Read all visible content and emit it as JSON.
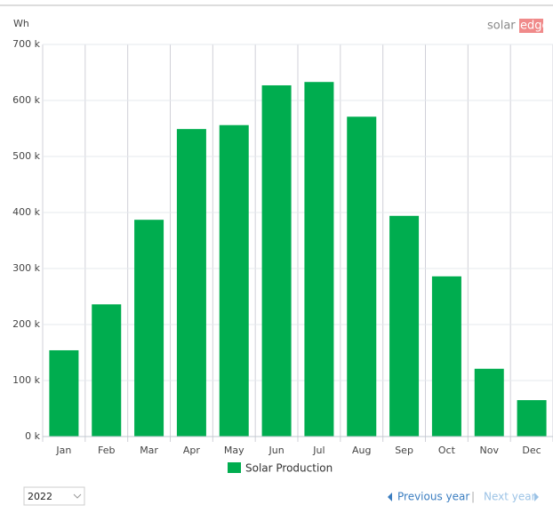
{
  "chart_data": {
    "type": "bar",
    "y_unit": "Wh",
    "categories": [
      "Jan",
      "Feb",
      "Mar",
      "Apr",
      "May",
      "Jun",
      "Jul",
      "Aug",
      "Sep",
      "Oct",
      "Nov",
      "Dec"
    ],
    "series": [
      {
        "name": "Solar Production",
        "color": "#00ad4f",
        "values": [
          154000,
          236000,
          387000,
          549000,
          556000,
          627000,
          633000,
          571000,
          394000,
          286000,
          121000,
          65000
        ]
      }
    ],
    "ylim": [
      0,
      700000
    ],
    "yticks": [
      {
        "value": 0,
        "label": "0 k"
      },
      {
        "value": 100000,
        "label": "100 k"
      },
      {
        "value": 200000,
        "label": "200 k"
      },
      {
        "value": 300000,
        "label": "300 k"
      },
      {
        "value": 400000,
        "label": "400 k"
      },
      {
        "value": 500000,
        "label": "500 k"
      },
      {
        "value": 600000,
        "label": "600 k"
      },
      {
        "value": 700000,
        "label": "700 k"
      }
    ],
    "grid": true
  },
  "ui": {
    "logo": {
      "left": "solar",
      "right": "edge"
    },
    "year_select": "2022",
    "nav": {
      "previous": "Previous year",
      "separator": "|",
      "next": "Next year"
    }
  }
}
